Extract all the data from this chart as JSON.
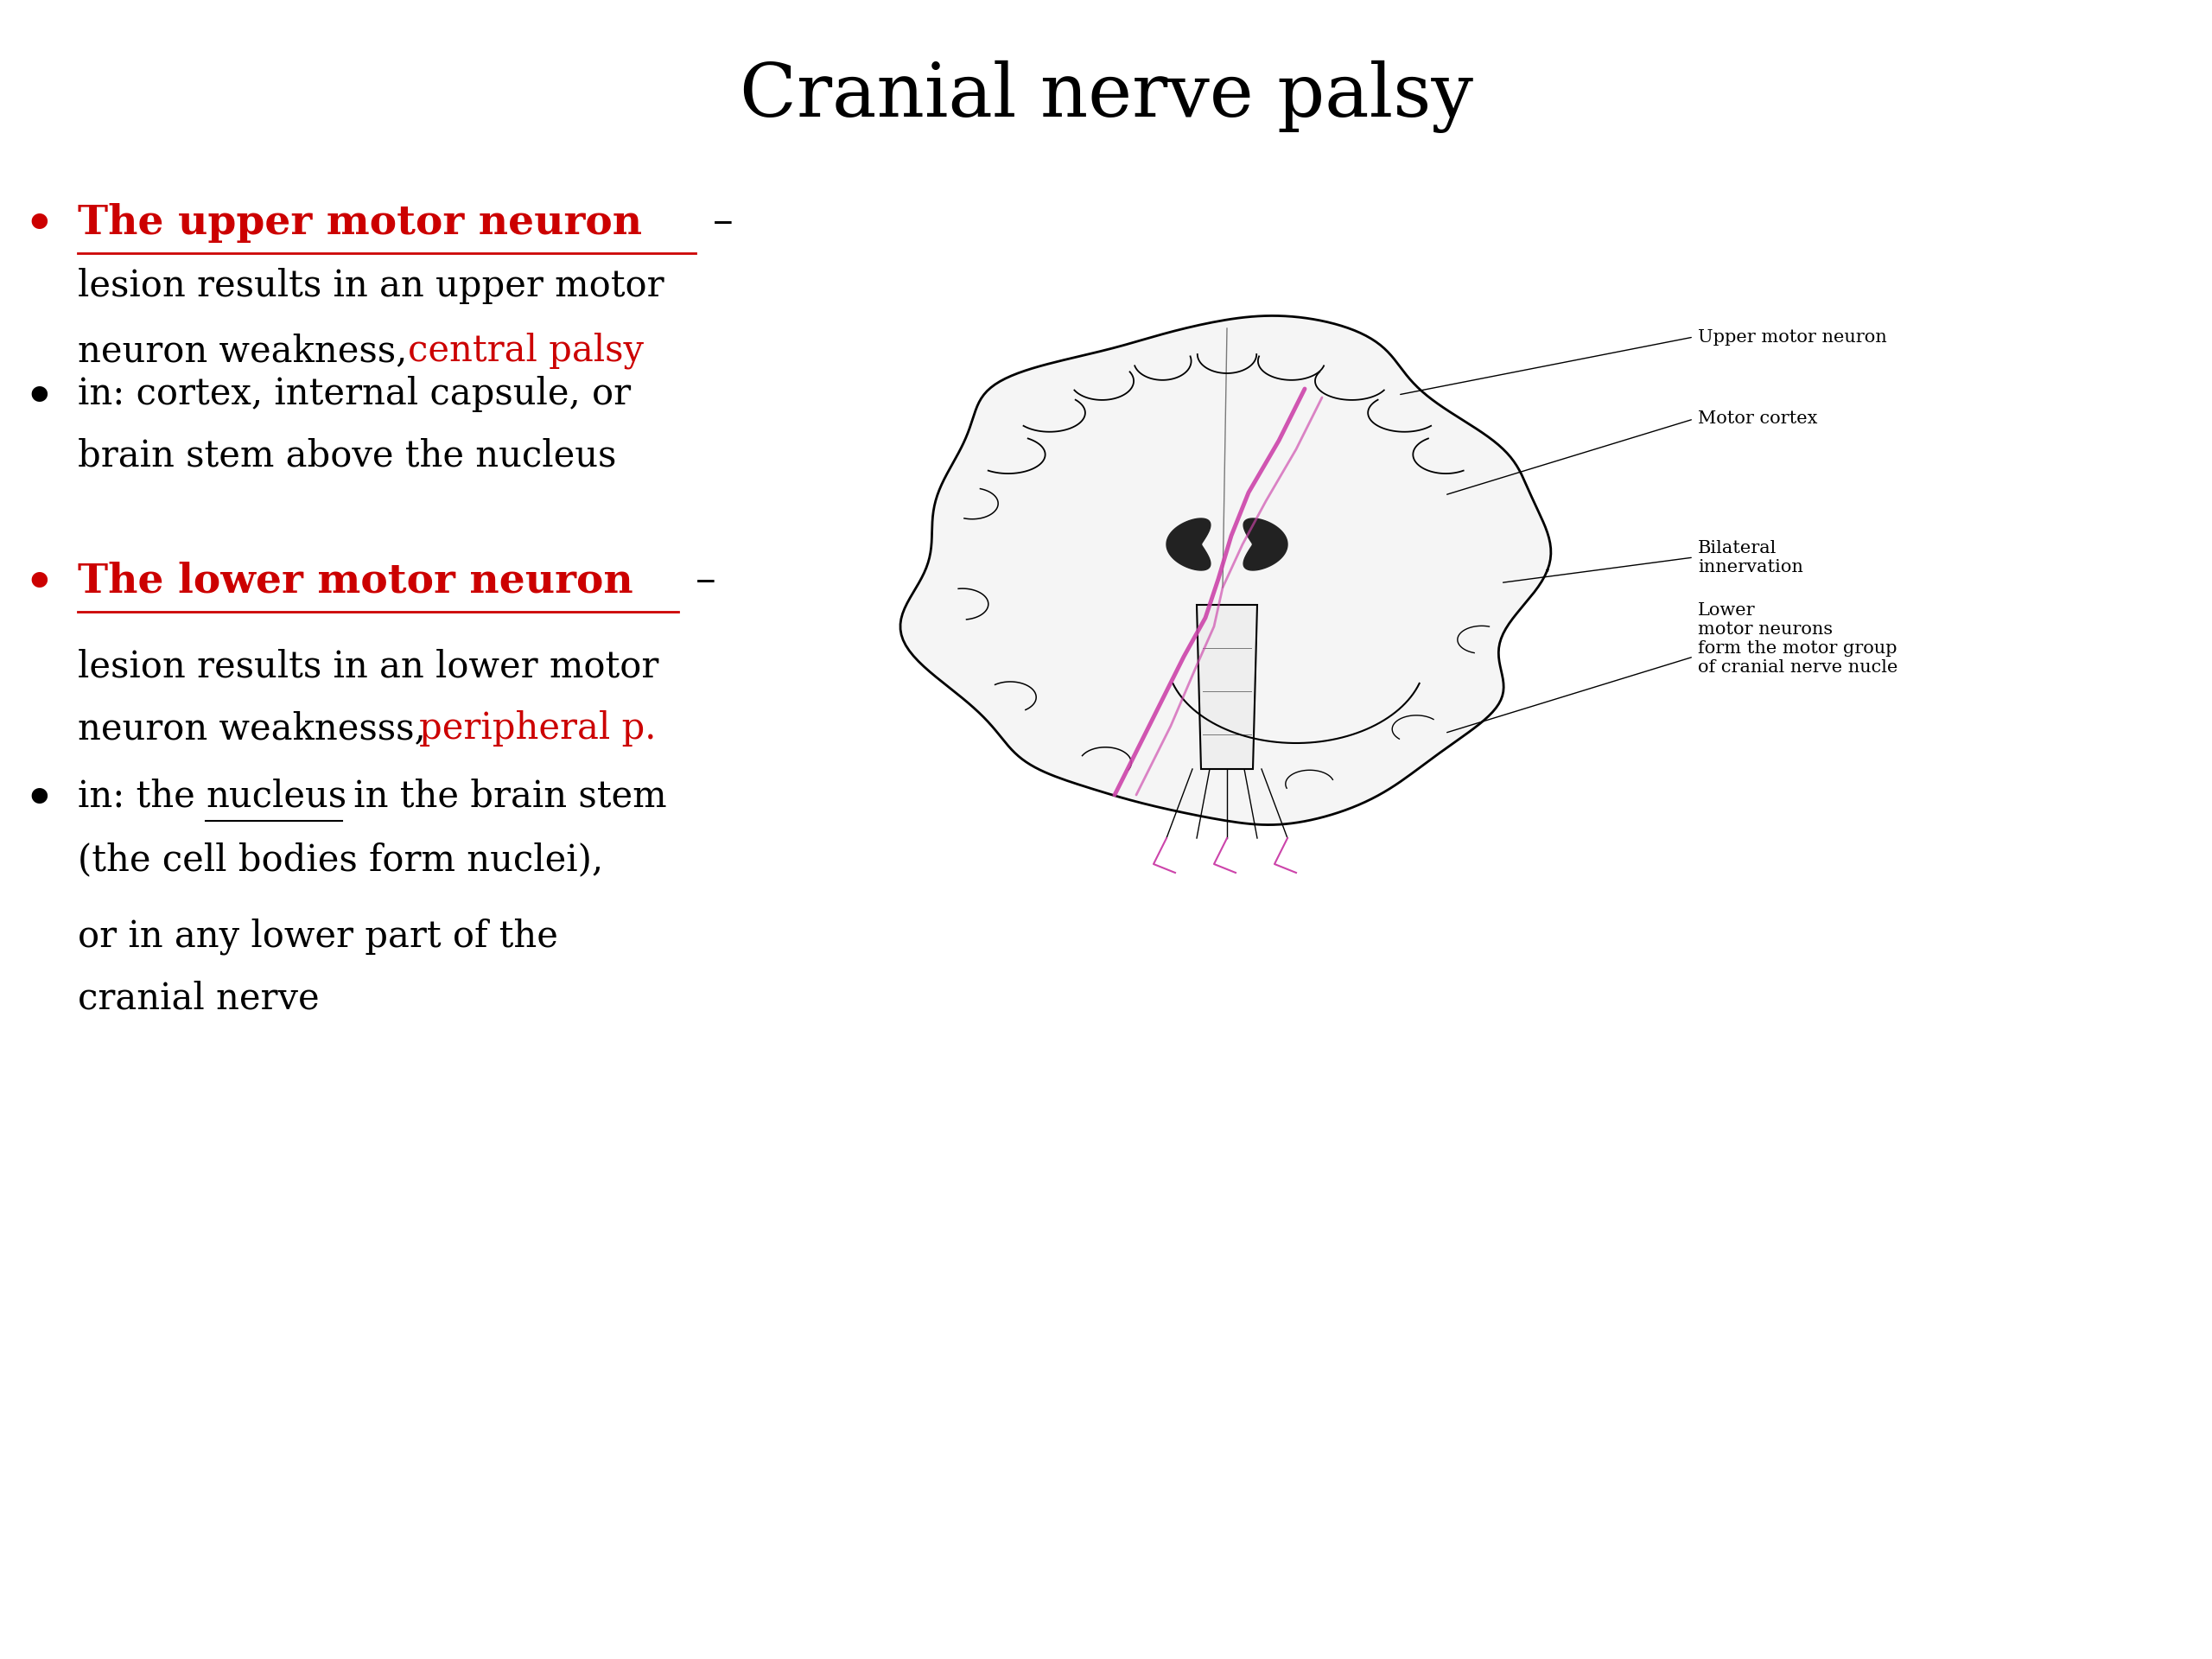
{
  "title": "Cranial nerve palsy",
  "title_fontsize": 62,
  "title_color": "#000000",
  "title_font": "serif",
  "background_color": "#ffffff",
  "bullet_color": "#cc0000",
  "text_color": "#000000",
  "red_color": "#cc0000",
  "bullet1_heading": "The upper motor neuron",
  "bullet1_dash": " –",
  "bullet1_body1": "lesion results in an upper motor",
  "bullet1_body2": "neuron weakness, ",
  "bullet1_body2_red": "central palsy",
  "bullet2_heading": "in: cortex, internal capsule, or",
  "bullet2_body": "brain stem above the nucleus",
  "bullet3_heading": "The lower motor neuron",
  "bullet3_dash": " –",
  "bullet3_body1": "lesion results in an lower motor",
  "bullet3_body2": "neuron weaknesss, ",
  "bullet3_body2_red": "peripheral p.",
  "bullet4_heading1": "in: the ",
  "bullet4_heading1_underline": "nucleus",
  "bullet4_heading1_rest": " in the brain stem",
  "bullet4_body": "(the cell bodies form nuclei),",
  "bullet4_body2": "or in any lower part of the",
  "bullet4_body3": "cranial nerve",
  "label1": "Upper motor neuron",
  "label2": "Motor cortex",
  "label3": "Bilateral\ninnervation",
  "label4": "Lower\nmotor neurons\nform the motor group\nof cranial nerve nucle",
  "font_size_body": 30,
  "font_size_heading": 34,
  "nerve_color": "#cc44aa"
}
